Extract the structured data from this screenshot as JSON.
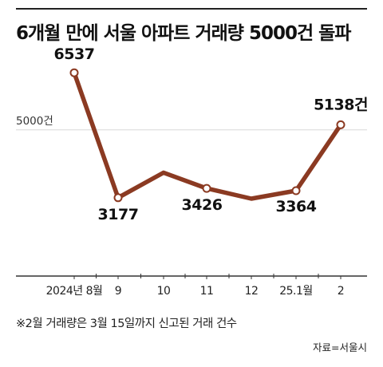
{
  "title": "6개월 만에 서울 아파트 거래량 5000건 돌파",
  "note": "※2월 거래량은 3월 15일까지 신고된 거래 건수",
  "source": "자료=서울시",
  "colors": {
    "line": "#8b3a22",
    "point_fill": "#ffffff",
    "grid": "#d8d8d8",
    "axis": "#333333",
    "text": "#111111"
  },
  "chart_data": {
    "type": "line",
    "title": "6개월 만에 서울 아파트 거래량 5000건 돌파",
    "categories": [
      "2024년 8월",
      "9",
      "10",
      "11",
      "12",
      "25.1월",
      "2"
    ],
    "series": [
      {
        "values": [
          6537,
          3177,
          3850,
          3426,
          3150,
          3364,
          5138
        ]
      }
    ],
    "labeled_points": [
      {
        "index": 0,
        "label": "6537"
      },
      {
        "index": 1,
        "label": "3177"
      },
      {
        "index": 3,
        "label": "3426"
      },
      {
        "index": 5,
        "label": "3364"
      },
      {
        "index": 6,
        "label": "5138건"
      }
    ],
    "marker_indices": [
      0,
      1,
      3,
      5,
      6
    ],
    "reference_line": {
      "value": 5000,
      "label": "5000건"
    },
    "ylim": [
      2000,
      7200
    ],
    "grid": false
  }
}
